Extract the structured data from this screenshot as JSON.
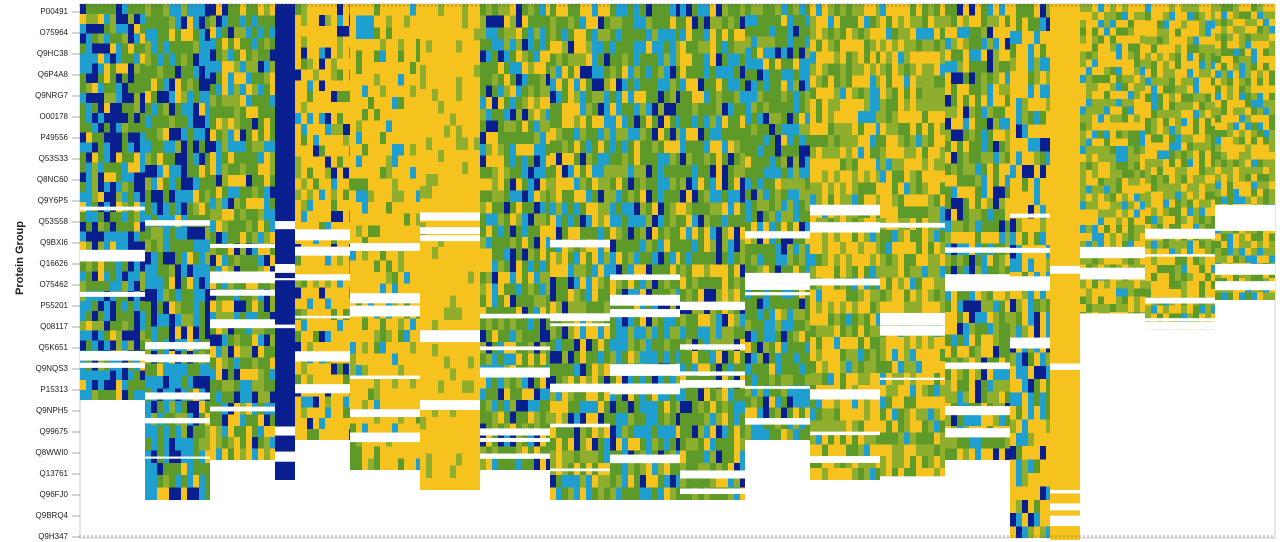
{
  "chart_data": {
    "type": "heatmap",
    "y_label": "Protein Group",
    "categories": [
      "P00491",
      "O75964",
      "Q9HC38",
      "Q6P4A8",
      "Q9NRG7",
      "O00178",
      "P49556",
      "Q53S33",
      "Q8NC60",
      "Q9Y6P5",
      "Q53S58",
      "Q9BXI6",
      "Q16626",
      "O75462",
      "P55201",
      "Q08117",
      "Q5K651",
      "Q9NQS3",
      "P15313",
      "Q9NPH5",
      "Q99675",
      "Q8WWI0",
      "Q13761",
      "Q96FJ0",
      "Q9BRQ4",
      "Q9H347"
    ]
  }
}
